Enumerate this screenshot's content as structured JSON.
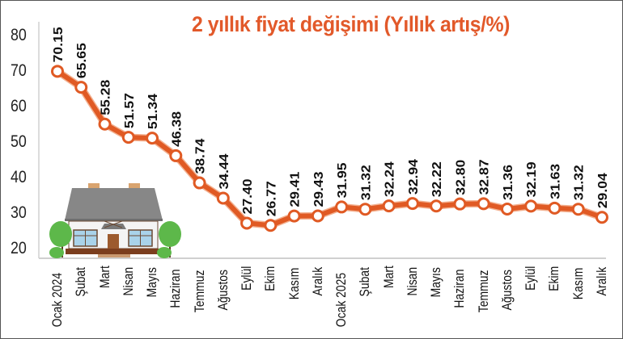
{
  "title": "2 yıllık fiyat değişimi (Yıllık artış/%)",
  "colors": {
    "accent": "#e2592a",
    "line": "#e05a24",
    "marker_fill": "#ffffff",
    "axis": "#cccccc",
    "text": "#111111"
  },
  "chart_data": {
    "type": "line",
    "title": "2 yıllık fiyat değişimi (Yıllık artış/%)",
    "xlabel": "",
    "ylabel": "",
    "ylim": [
      20,
      80
    ],
    "yticks": [
      80,
      70,
      60,
      50,
      40,
      30,
      20
    ],
    "grid": false,
    "legend": null,
    "categories": [
      "Ocak 2024",
      "Şubat",
      "Mart",
      "Nisan",
      "Mayıs",
      "Haziran",
      "Temmuz",
      "Ağustos",
      "Eylül",
      "Ekim",
      "Kasım",
      "Aralık",
      "Ocak 2025",
      "Şubat",
      "Mart",
      "Nisan",
      "Mayıs",
      "Haziran",
      "Temmuz",
      "Ağustos",
      "Eylül",
      "Ekim",
      "Kasım",
      "Aralık"
    ],
    "series": [
      {
        "name": "Yıllık artış (%)",
        "values": [
          70.15,
          65.65,
          55.28,
          51.57,
          51.34,
          46.38,
          38.74,
          34.44,
          27.4,
          26.77,
          29.41,
          29.43,
          31.95,
          31.32,
          32.24,
          32.94,
          32.22,
          32.8,
          32.87,
          31.36,
          32.19,
          31.63,
          31.32,
          29.04
        ],
        "labels": [
          "70.15",
          "65.65",
          "55.28",
          "51.57",
          "51.34",
          "46.38",
          "38.74",
          "34.44",
          "27.40",
          "26.77",
          "29.41",
          "29.43",
          "31.95",
          "31.32",
          "32.24",
          "32.94",
          "32.22",
          "32.80",
          "32.87",
          "31.36",
          "32.19",
          "31.63",
          "31.32",
          "29.04"
        ]
      }
    ],
    "annotations": [
      "house-illustration"
    ]
  }
}
